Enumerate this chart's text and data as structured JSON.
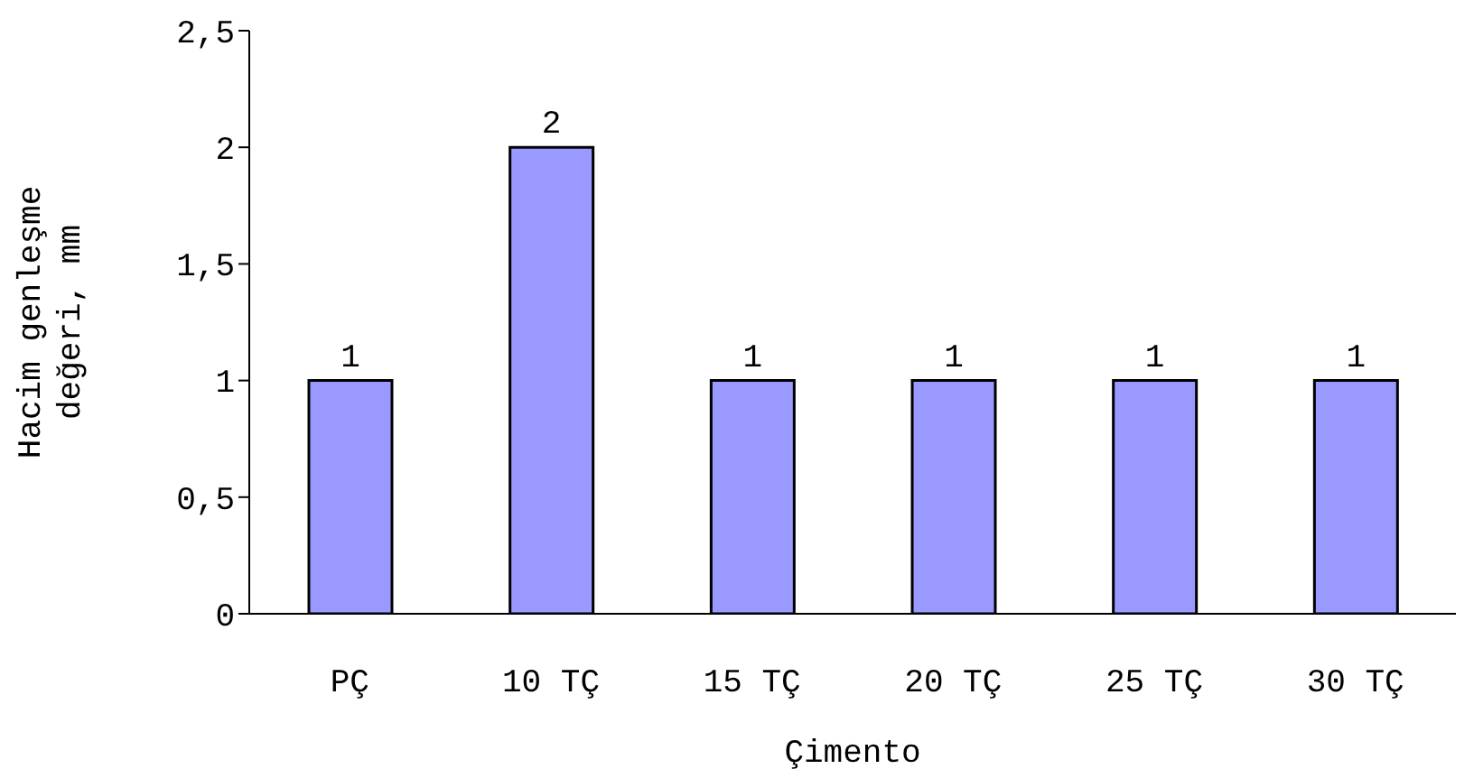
{
  "chart_data": {
    "type": "bar",
    "xlabel": "Çimento",
    "ylabel": "Hacim genleşme\ndeğeri, mm",
    "categories": [
      "PÇ",
      "10 TÇ",
      "15 TÇ",
      "20 TÇ",
      "25 TÇ",
      "30 TÇ"
    ],
    "values": [
      1,
      2,
      1,
      1,
      1,
      1
    ],
    "color": "#9999ff",
    "ylim": [
      0,
      2.5
    ],
    "yticks": [
      0,
      {
        "value": 0.5,
        "label": "0,5"
      },
      1,
      {
        "value": 1.5,
        "label": "1,5"
      },
      2,
      {
        "value": 2.5,
        "label": "2,5"
      }
    ],
    "data_labels": true,
    "grid": false,
    "legend": false
  }
}
